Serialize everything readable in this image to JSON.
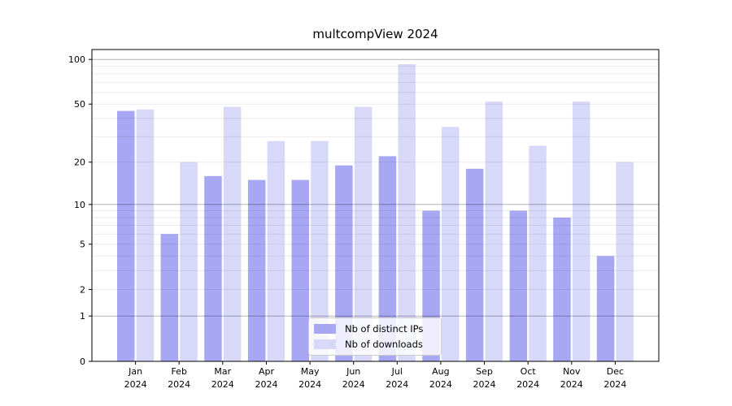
{
  "figure": {
    "background_color": "#ffffff"
  },
  "chart_data": {
    "type": "bar",
    "title": "multcompView 2024",
    "xlabel": "",
    "ylabel": "",
    "y_scale": "log10(value+1), 0 at baseline",
    "categories": [
      "Jan",
      "Feb",
      "Mar",
      "Apr",
      "May",
      "Jun",
      "Jul",
      "Aug",
      "Sep",
      "Oct",
      "Nov",
      "Dec"
    ],
    "category_year": "2024",
    "series": [
      {
        "name": "Nb of distinct IPs",
        "color": "#a7a7f4",
        "values": [
          45,
          6,
          16,
          15,
          15,
          19,
          22,
          9,
          18,
          9,
          8,
          4
        ]
      },
      {
        "name": "Nb of downloads",
        "color": "#d8d8f9",
        "values": [
          46,
          20,
          48,
          28,
          28,
          48,
          93,
          35,
          52,
          26,
          52,
          20
        ]
      }
    ],
    "y_ticks": [
      0,
      1,
      2,
      5,
      10,
      20,
      50,
      100
    ],
    "y_major_gridlines": [
      1,
      10,
      100
    ],
    "y_minor_gridlines": [
      2,
      3,
      4,
      5,
      6,
      7,
      8,
      9,
      20,
      30,
      40,
      50,
      60,
      70,
      80,
      90
    ],
    "ylim": [
      0,
      113
    ],
    "grid": true,
    "legend_position": "inside-bottom-center",
    "major_grid_color": "rgba(0,0,0,0.30)",
    "minor_grid_color": "rgba(0,0,0,0.08)",
    "spine_color": "#000000",
    "text_color": "#000000"
  }
}
